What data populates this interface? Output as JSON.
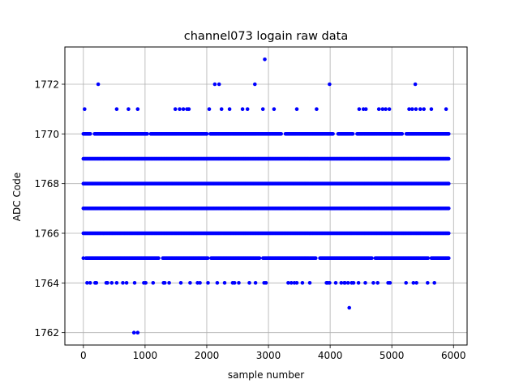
{
  "chart_data": {
    "type": "scatter",
    "title": "channel073 logain raw data",
    "xlabel": "sample number",
    "ylabel": "ADC Code",
    "xlim": [
      -300,
      6220
    ],
    "ylim": [
      1761.5,
      1773.5
    ],
    "xticks": [
      0,
      1000,
      2000,
      3000,
      4000,
      5000,
      6000
    ],
    "yticks": [
      1762,
      1764,
      1766,
      1768,
      1770,
      1772
    ],
    "grid": true,
    "marker_color": "#0000ff",
    "sample_count": 5930,
    "dense_levels": [
      1765,
      1766,
      1767,
      1768,
      1769,
      1770
    ],
    "sparse_points": {
      "1773": [
        2940
      ],
      "1772": [
        240,
        2130,
        2200,
        2780,
        3990,
        5380
      ],
      "1771": [
        20,
        540,
        730,
        880,
        1490,
        1560,
        1620,
        1680,
        1710,
        2040,
        2240,
        2370,
        2580,
        2660,
        2910,
        3090,
        3460,
        3780,
        4470,
        4540,
        4580,
        4790,
        4850,
        4900,
        4960,
        5280,
        5330,
        5390,
        5460,
        5520,
        5640,
        5880
      ],
      "1764": [
        60,
        110,
        190,
        210,
        370,
        390,
        460,
        540,
        640,
        700,
        830,
        980,
        1010,
        1130,
        1300,
        1320,
        1390,
        1580,
        1730,
        1850,
        1890,
        2020,
        2170,
        2290,
        2420,
        2450,
        2520,
        2690,
        2790,
        2930,
        2960,
        3320,
        3370,
        3420,
        3460,
        3550,
        3670,
        3940,
        3960,
        3990,
        4090,
        4180,
        4230,
        4240,
        4290,
        4350,
        4380,
        4460,
        4570,
        4700,
        4770,
        4940,
        4970,
        5230,
        5350,
        5400,
        5580,
        5690
      ],
      "1763": [
        4310
      ],
      "1762": [
        820,
        880
      ]
    },
    "dense_gaps": {
      "1770": [
        [
          120,
          170
        ],
        [
          1040,
          1080
        ],
        [
          2010,
          2050
        ],
        [
          3210,
          3270
        ],
        [
          4060,
          4120
        ],
        [
          4380,
          4430
        ],
        [
          5180,
          5230
        ]
      ],
      "1765": [
        [
          10,
          40
        ],
        [
          1230,
          1280
        ],
        [
          2020,
          2060
        ],
        [
          2870,
          2900
        ],
        [
          3780,
          3830
        ],
        [
          4690,
          4730
        ],
        [
          5600,
          5640
        ]
      ]
    }
  }
}
